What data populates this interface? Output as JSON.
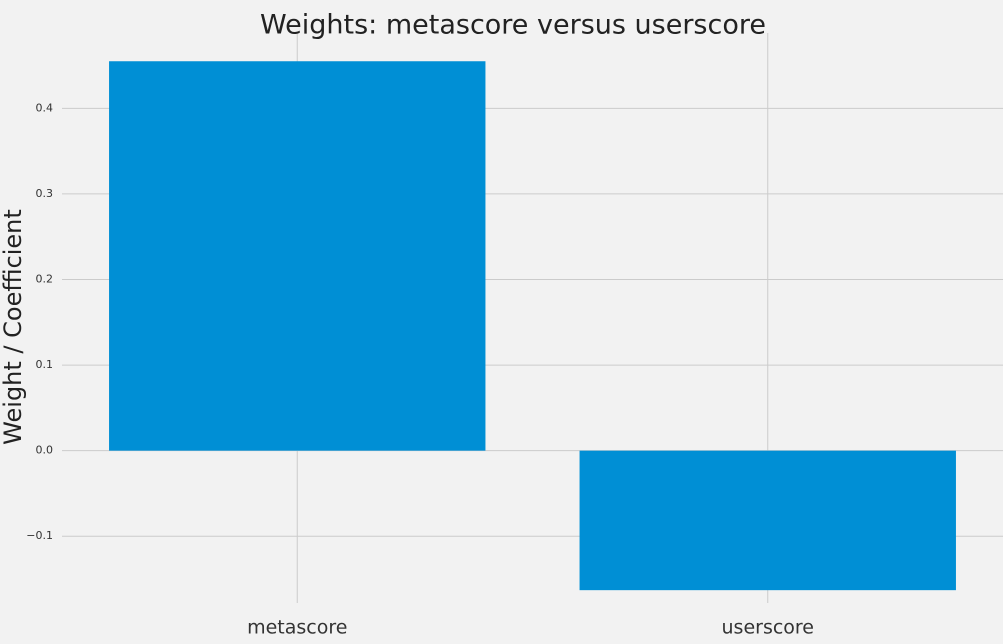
{
  "chart_data": {
    "type": "bar",
    "title": "Weights: metascore versus userscore",
    "xlabel": "",
    "ylabel": "Weight / Coefficient",
    "categories": [
      "metascore",
      "userscore"
    ],
    "values": [
      0.455,
      -0.163
    ],
    "ylim": [
      -0.178,
      0.488
    ],
    "yticks": [
      -0.1,
      0.0,
      0.1,
      0.2,
      0.3,
      0.4
    ],
    "ytick_labels": [
      "−0.1",
      "0.0",
      "0.1",
      "0.2",
      "0.3",
      "0.4"
    ],
    "grid": true,
    "bar_color": "#008fd5",
    "background_color": "#f2f2f2",
    "grid_color": "#cbcbcb"
  }
}
